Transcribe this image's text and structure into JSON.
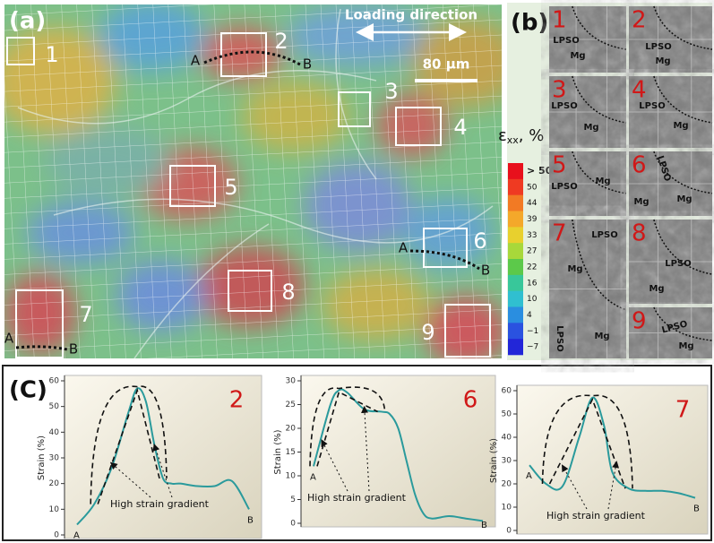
{
  "panel_a": {
    "label": "(a)",
    "loading_direction": "Loading direction",
    "scale_bar": "80 µm",
    "regions": [
      "1",
      "2",
      "3",
      "4",
      "5",
      "6",
      "7",
      "8",
      "9"
    ],
    "profiles": [
      {
        "start": "A",
        "end": "B"
      },
      {
        "start": "A",
        "end": "B"
      },
      {
        "start": "A",
        "end": "B"
      }
    ],
    "colorbar": {
      "symbol": "ε",
      "subscript": "xx",
      "unit": ", %",
      "labels": [
        "> 50",
        "50",
        "44",
        "39",
        "33",
        "27",
        "22",
        "16",
        "10",
        "4",
        "−1",
        "−7"
      ],
      "colors": [
        "#e8101c",
        "#ef3a22",
        "#f27a24",
        "#f4a82a",
        "#e8d02e",
        "#a8d83a",
        "#5cc94a",
        "#38c79a",
        "#30bfd0",
        "#2a8ee0",
        "#2a52e0",
        "#2226d8"
      ]
    }
  },
  "panel_b": {
    "label": "(b)",
    "tiles": [
      {
        "number": "1",
        "labels": [
          "LPSO",
          "Mg"
        ]
      },
      {
        "number": "2",
        "labels": [
          "LPSO",
          "Mg"
        ]
      },
      {
        "number": "3",
        "labels": [
          "LPSO",
          "Mg"
        ]
      },
      {
        "number": "4",
        "labels": [
          "LPSO",
          "Mg"
        ]
      },
      {
        "number": "5",
        "labels": [
          "LPSO",
          "Mg"
        ]
      },
      {
        "number": "6",
        "labels": [
          "LPSO",
          "Mg",
          "Mg"
        ]
      },
      {
        "number": "7",
        "labels": [
          "LPSO",
          "LPSO",
          "Mg",
          "Mg"
        ]
      },
      {
        "number": "8",
        "labels": [
          "LPSO",
          "Mg"
        ]
      },
      {
        "number": "9",
        "labels": [
          "LPSO",
          "Mg"
        ]
      }
    ]
  },
  "panel_c": {
    "label": "(C)"
  },
  "chart_data": [
    {
      "type": "line",
      "title": "2",
      "y_label": "Strain (%)",
      "annotation": "High strain gradient",
      "start_label": "A",
      "end_label": "B",
      "color": "#2a9a9c",
      "x": [
        0,
        1,
        2,
        3,
        3.5,
        4,
        4.5,
        5,
        5.5,
        6,
        7,
        8,
        9,
        10
      ],
      "values": [
        4,
        12,
        26,
        48,
        57,
        52,
        35,
        22,
        20,
        20,
        19,
        19,
        21,
        10
      ],
      "xlim": [
        0,
        10
      ],
      "ylim": [
        0,
        60
      ],
      "yticks": [
        0,
        10,
        20,
        30,
        40,
        50,
        60
      ]
    },
    {
      "type": "line",
      "title": "6",
      "y_label": "Strain (%)",
      "annotation": "High strain gradient",
      "start_label": "A",
      "end_label": "B",
      "color": "#2a9a9c",
      "x": [
        0,
        1,
        1.5,
        2,
        3,
        4,
        4.5,
        5,
        5.5,
        6,
        6.5,
        7,
        8,
        9,
        10
      ],
      "values": [
        12,
        25,
        28,
        27.5,
        24,
        23.5,
        23,
        20,
        13,
        6,
        2,
        1,
        1.5,
        1,
        0.5
      ],
      "xlim": [
        0,
        10
      ],
      "ylim": [
        0,
        30
      ],
      "yticks": [
        0,
        5,
        10,
        15,
        20,
        25,
        30
      ]
    },
    {
      "type": "line",
      "title": "7",
      "y_label": "Strain (%)",
      "annotation": "High strain gradient",
      "start_label": "A",
      "end_label": "B",
      "color": "#2a9a9c",
      "x": [
        0,
        1,
        2,
        3,
        3.8,
        4.5,
        5,
        6,
        7,
        8,
        9,
        10
      ],
      "values": [
        28,
        20,
        19,
        40,
        57,
        45,
        25,
        18,
        17,
        17,
        16,
        14
      ],
      "xlim": [
        0,
        10
      ],
      "ylim": [
        0,
        60
      ],
      "yticks": [
        0,
        10,
        20,
        30,
        40,
        50,
        60
      ]
    }
  ]
}
